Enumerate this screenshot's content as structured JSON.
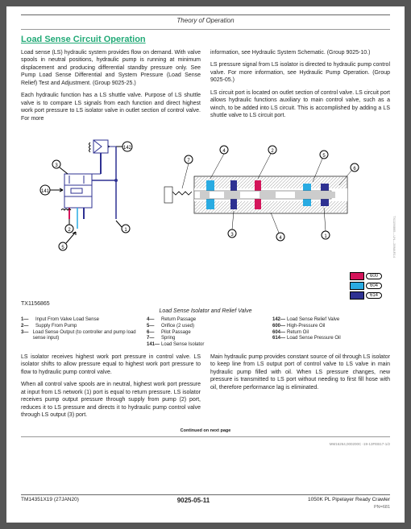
{
  "header": {
    "category": "Theory of Operation"
  },
  "title": "Load Sense Circuit Operation",
  "text": {
    "p1": "Load sense (LS) hydraulic system provides flow on demand. With valve spools in neutral positions, hydraulic pump is running at minimum displacement and producing differential standby pressure only. See Pump Load Sense Differential and System Pressure (Load Sense Relief) Test and Adjustment. (Group 9025-25.)",
    "p2": "Each hydraulic function has a LS shuttle valve. Purpose of LS shuttle valve is to compare LS signals from each function and direct highest work port pressure to LS isolator valve in outlet section of control valve. For more",
    "r1": "information, see Hydraulic System Schematic. (Group 9025-10.)",
    "r2": "LS pressure signal from LS isolator is directed to hydraulic pump control valve. For more information, see Hydraulic Pump Operation. (Group 9025-05.)",
    "r3": "LS circuit port is located on outlet section of control valve. LS circuit port allows hydraulic functions auxiliary to main control valve, such as a winch, to be added into LS circuit. This is accomplished by adding a LS shuttle valve to LS circuit port.",
    "b1": "LS isolator receives highest work port pressure in control valve. LS isolator shifts to allow pressure equal to highest work port pressure to flow to hydraulic pump control valve.",
    "b2": "When all control valve spools are in neutral, highest work port pressure at input from LS network (1) port is equal to return pressure. LS isolator receives pump output pressure through supply from pump (2) port, reduces it to LS pressure and directs it to hydraulic pump control valve through LS output (3) port.",
    "br1": "Main hydraulic pump provides constant source of oil through LS isolator to keep line from LS output port of control valve to LS valve in main hydraulic pump filled with oil. When LS pressure changes, new pressure is transmitted to LS port without needing to first fill hose with oil, therefore performance lag is eliminated."
  },
  "figure": {
    "number": "TX1156865",
    "caption": "Load Sense Isolator and Relief Valve",
    "sidecode": "TX1156865—UN—28MAR14"
  },
  "callouts": {
    "c1": "1",
    "c2": "2",
    "c3": "3",
    "c4": "4",
    "c5": "5",
    "c6": "6",
    "c7": "7",
    "c141": "141",
    "c142": "142"
  },
  "legend1": [
    {
      "n": "1—",
      "t": "Input From Valve Load Sense"
    },
    {
      "n": "2—",
      "t": "Supply From Pump"
    },
    {
      "n": "3—",
      "t": "Load Sense Output (to controller and pump load sense input)"
    }
  ],
  "legend2": [
    {
      "n": "4—",
      "t": "Return Passage"
    },
    {
      "n": "5—",
      "t": "Orifice (2 used)"
    },
    {
      "n": "6—",
      "t": "Pilot Passage"
    },
    {
      "n": "7—",
      "t": "Spring"
    },
    {
      "n": "141—",
      "t": "Load Sense Isolator"
    }
  ],
  "legend3": [
    {
      "n": "142—",
      "t": "Load Sense Relief Valve"
    },
    {
      "n": "600—",
      "t": "High-Pressure Oil"
    },
    {
      "n": "604—",
      "t": "Return Oil"
    },
    {
      "n": "614—",
      "t": "Load Sense Pressure Oil"
    }
  ],
  "color_legend": [
    {
      "color": "#d4145a",
      "code": "600"
    },
    {
      "color": "#29abe2",
      "code": "604"
    },
    {
      "color": "#2e3192",
      "code": "614"
    }
  ],
  "diagram_colors": {
    "hp": "#d4145a",
    "ret": "#29abe2",
    "ls": "#2e3192",
    "hatch": "#999",
    "line": "#000"
  },
  "cont": "Continued on next page",
  "tinycode": "MM16264,000200C -19-13FEB17-1/2",
  "footer": {
    "left": "TM14351X19 (27JAN20)",
    "mid": "9025-05-11",
    "right": "1050K PL Pipelayer Ready Crawler",
    "pn": "PN=681"
  }
}
